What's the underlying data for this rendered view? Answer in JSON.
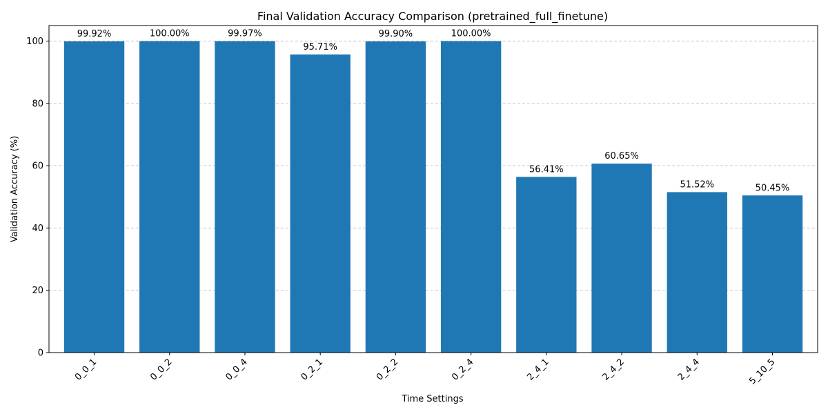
{
  "chart_data": {
    "type": "bar",
    "title": "Final Validation Accuracy Comparison (pretrained_full_finetune)",
    "xlabel": "Time Settings",
    "ylabel": "Validation Accuracy (%)",
    "categories": [
      "0_0_1",
      "0_0_2",
      "0_0_4",
      "0_2_1",
      "0_2_2",
      "0_2_4",
      "2_4_1",
      "2_4_2",
      "2_4_4",
      "5_10_5"
    ],
    "values": [
      99.92,
      100.0,
      99.97,
      95.71,
      99.9,
      100.0,
      56.41,
      60.65,
      51.52,
      50.45
    ],
    "data_labels": [
      "99.92%",
      "100.00%",
      "99.97%",
      "95.71%",
      "99.90%",
      "100.00%",
      "56.41%",
      "60.65%",
      "51.52%",
      "50.45%"
    ],
    "ylim": [
      0,
      105
    ],
    "yticks": [
      0,
      20,
      40,
      60,
      80,
      100
    ],
    "grid": "y",
    "bar_color": "#1f77b4"
  }
}
